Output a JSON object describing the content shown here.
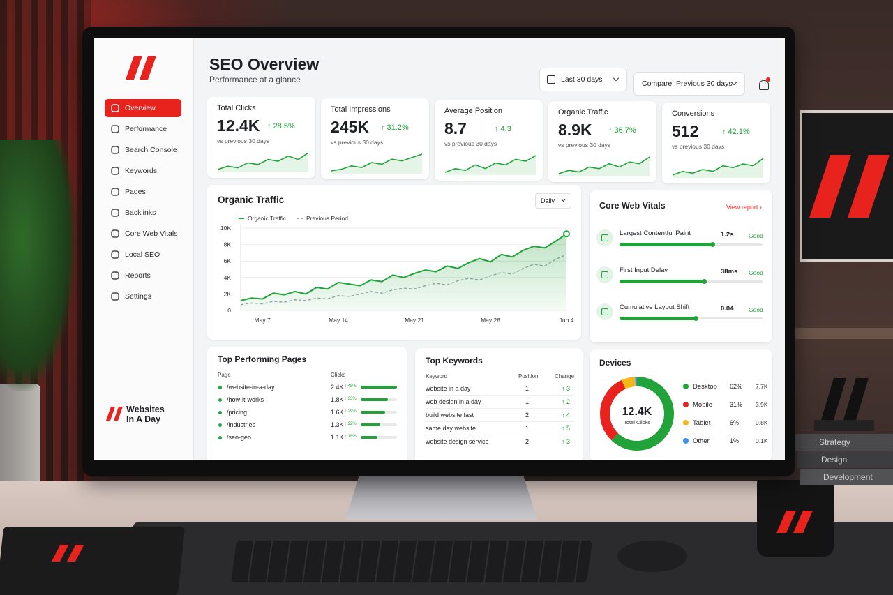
{
  "sidebar": {
    "nav": [
      "Overview",
      "Performance",
      "Search Console",
      "Keywords",
      "Pages",
      "Backlinks",
      "Core Web Vitals",
      "Local SEO",
      "Reports",
      "Settings"
    ],
    "brand": [
      "Websites",
      "In A Day"
    ]
  },
  "header": {
    "title": "SEO Overview",
    "subtitle": "Performance at a glance",
    "date_range": "Last 30 days",
    "compare": "Compare: Previous 30 days"
  },
  "kpis": [
    {
      "label": "Total Clicks",
      "value": "12.4K",
      "change": "↑ 28.5%",
      "note": "vs previous 30 days",
      "spark": [
        3,
        4,
        3.5,
        5,
        4.5,
        6,
        5.5,
        7,
        6,
        8
      ]
    },
    {
      "label": "Total Impressions",
      "value": "245K",
      "change": "↑ 31.2%",
      "note": "vs previous 30 days",
      "spark": [
        3,
        3.5,
        4.5,
        4,
        5.5,
        5,
        6.5,
        6,
        7,
        8
      ]
    },
    {
      "label": "Average Position",
      "value": "8.7",
      "change": "↑ 4.3",
      "note": "vs previous 30 days",
      "spark": [
        3,
        4,
        3.5,
        5,
        4,
        5.5,
        5,
        6.5,
        6,
        7.5
      ]
    },
    {
      "label": "Organic Traffic",
      "value": "8.9K",
      "change": "↑ 36.7%",
      "note": "vs previous 30 days",
      "spark": [
        3,
        4,
        3.5,
        5,
        4.5,
        6,
        5,
        6.5,
        6,
        8
      ]
    },
    {
      "label": "Conversions",
      "value": "512",
      "change": "↑ 42.1%",
      "note": "vs previous 30 days",
      "spark": [
        3,
        4,
        3.5,
        4.5,
        4,
        5.5,
        5,
        6,
        5.5,
        7.5
      ]
    }
  ],
  "traffic": {
    "type": "line",
    "title": "Organic Traffic",
    "interval": "Daily",
    "categories": [
      null,
      null,
      "May 7",
      null,
      null,
      null,
      null,
      null,
      null,
      "May 14",
      null,
      null,
      null,
      null,
      null,
      null,
      "May 21",
      null,
      null,
      null,
      null,
      null,
      null,
      "May 28",
      null,
      null,
      null,
      null,
      null,
      null,
      "Jun 4"
    ],
    "series": [
      {
        "name": "Organic Traffic",
        "color": "#22a33a",
        "values": [
          1200,
          1500,
          1400,
          2100,
          1900,
          2300,
          2000,
          2800,
          2600,
          3400,
          3200,
          3000,
          3700,
          3500,
          4300,
          4000,
          4500,
          4900,
          4700,
          5400,
          5100,
          5800,
          6300,
          5900,
          6800,
          6500,
          7300,
          7800,
          7600,
          8400,
          9300
        ]
      },
      {
        "name": "Previous Period",
        "color": "#9aa0a6",
        "values": [
          700,
          900,
          800,
          1100,
          1000,
          1300,
          1200,
          1500,
          1400,
          1800,
          1700,
          2000,
          2300,
          2100,
          2500,
          2700,
          2600,
          3000,
          3300,
          3100,
          3600,
          3900,
          3700,
          4200,
          4600,
          4400,
          5100,
          5600,
          5400,
          6200,
          6800
        ]
      }
    ],
    "ylim": [
      0,
      10000
    ],
    "yticks": [
      0,
      {
        "value": 2000,
        "label": "2K"
      },
      {
        "value": 4000,
        "label": "4K"
      },
      {
        "value": 6000,
        "label": "6K"
      },
      {
        "value": 8000,
        "label": "8K"
      },
      {
        "value": 10000,
        "label": "10K"
      }
    ],
    "grid": true
  },
  "vitals": {
    "title": "Core Web Vitals",
    "link": "View report ›",
    "items": [
      {
        "name": "Largest Contentful Paint",
        "value": "1.2s",
        "status": "Good",
        "bar": 65
      },
      {
        "name": "First Input Delay",
        "value": "38ms",
        "status": "Good",
        "bar": 59
      },
      {
        "name": "Cumulative Layout Shift",
        "value": "0.04",
        "status": "Good",
        "bar": 53
      }
    ]
  },
  "pages": {
    "title": "Top Performing Pages",
    "columns": [
      "Page",
      "Clicks"
    ],
    "rows": [
      {
        "page": "/website-in-a-day",
        "clicks": "2.4K",
        "change": "↑ 48%",
        "bar": 100
      },
      {
        "page": "/how-it-works",
        "clicks": "1.8K",
        "change": "↑ 33%",
        "bar": 75
      },
      {
        "page": "/pricing",
        "clicks": "1.6K",
        "change": "↑ 29%",
        "bar": 67
      },
      {
        "page": "/industries",
        "clicks": "1.3K",
        "change": "↑ 22%",
        "bar": 54
      },
      {
        "page": "/seo-geo",
        "clicks": "1.1K",
        "change": "↑ 18%",
        "bar": 46
      }
    ]
  },
  "keywords": {
    "title": "Top Keywords",
    "columns": [
      "Keyword",
      "Position",
      "Change"
    ],
    "rows": [
      [
        "website in a day",
        "1",
        "↑ 3"
      ],
      [
        "web design in a day",
        "1",
        "↑ 2"
      ],
      [
        "build website fast",
        "2",
        "↑ 4"
      ],
      [
        "same day website",
        "1",
        "↑ 5"
      ],
      [
        "website design service",
        "2",
        "↑ 3"
      ]
    ]
  },
  "devices": {
    "type": "donut",
    "title": "Devices",
    "center_value": "12.4K",
    "center_label": "Total Clicks",
    "categories": [
      "Desktop",
      "Mobile",
      "Tablet",
      "Other"
    ],
    "values": [
      62,
      31,
      6,
      1
    ],
    "value_labels": [
      "62%",
      "31%",
      "6%",
      "1%"
    ],
    "clicks": [
      "7.7K",
      "3.9K",
      "0.8K",
      "0.1K"
    ],
    "colors": [
      "#22a33a",
      "#e8231e",
      "#f5b619",
      "#3b8ff0"
    ]
  },
  "scene": {
    "books": [
      "Strategy",
      "Design",
      "Development"
    ]
  }
}
